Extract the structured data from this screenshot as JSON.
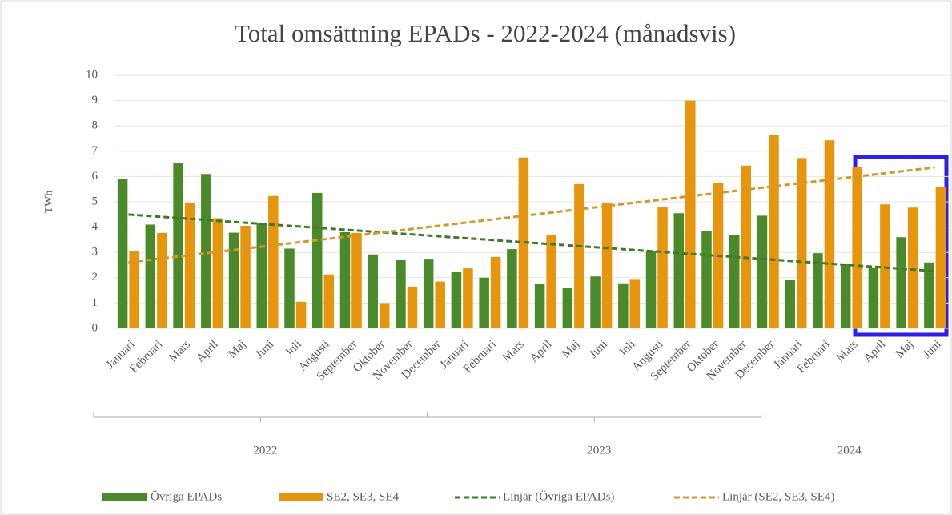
{
  "chart_data": {
    "type": "bar",
    "title": "Total omsättning EPADs - 2022-2024 (månadsvis)",
    "y_label": "TWh",
    "category_groups": [
      {
        "label": "2022",
        "categories": [
          "Januari",
          "Februari",
          "Mars",
          "April",
          "Maj",
          "Juni",
          "Juli",
          "Augusti",
          "September",
          "Oktober",
          "November",
          "December"
        ]
      },
      {
        "label": "2023",
        "categories": [
          "Januari",
          "Februari",
          "Mars",
          "April",
          "Maj",
          "Juni",
          "Juli",
          "Augusti",
          "September",
          "Oktober",
          "November",
          "December"
        ]
      },
      {
        "label": "2024",
        "categories": [
          "Januari",
          "Februari",
          "Mars",
          "April",
          "Maj",
          "Juni"
        ]
      }
    ],
    "series": [
      {
        "name": "Övriga EPADs",
        "color": "#4a8a2a",
        "values": [
          5.9,
          4.1,
          6.55,
          6.1,
          3.78,
          4.15,
          3.15,
          5.35,
          3.8,
          2.92,
          2.72,
          2.75,
          2.22,
          2.0,
          3.13,
          1.75,
          1.6,
          2.05,
          1.78,
          3.05,
          4.55,
          3.85,
          3.7,
          4.45,
          1.9,
          2.97,
          2.55,
          2.38,
          3.6,
          2.6
        ]
      },
      {
        "name": "SE2, SE3, SE4",
        "color": "#e8950e",
        "values": [
          3.07,
          3.77,
          4.97,
          4.35,
          4.05,
          5.23,
          1.05,
          2.13,
          3.77,
          1.0,
          1.65,
          1.85,
          2.37,
          2.82,
          6.75,
          3.67,
          5.7,
          4.97,
          1.95,
          4.8,
          9.0,
          5.73,
          6.43,
          7.63,
          6.73,
          7.43,
          6.38,
          4.9,
          4.77,
          5.6
        ]
      }
    ],
    "trendlines": [
      {
        "name": "Linjär (Övriga EPADs)",
        "color": "#3e7a2a",
        "series": 0
      },
      {
        "name": "Linjär (SE2, SE3, SE4)",
        "color": "#d4982a",
        "series": 1
      }
    ],
    "ylim": [
      0,
      10
    ],
    "yticks": [
      0,
      1,
      2,
      3,
      4,
      5,
      6,
      7,
      8,
      9,
      10
    ],
    "grid": true,
    "legend": "bottom"
  }
}
